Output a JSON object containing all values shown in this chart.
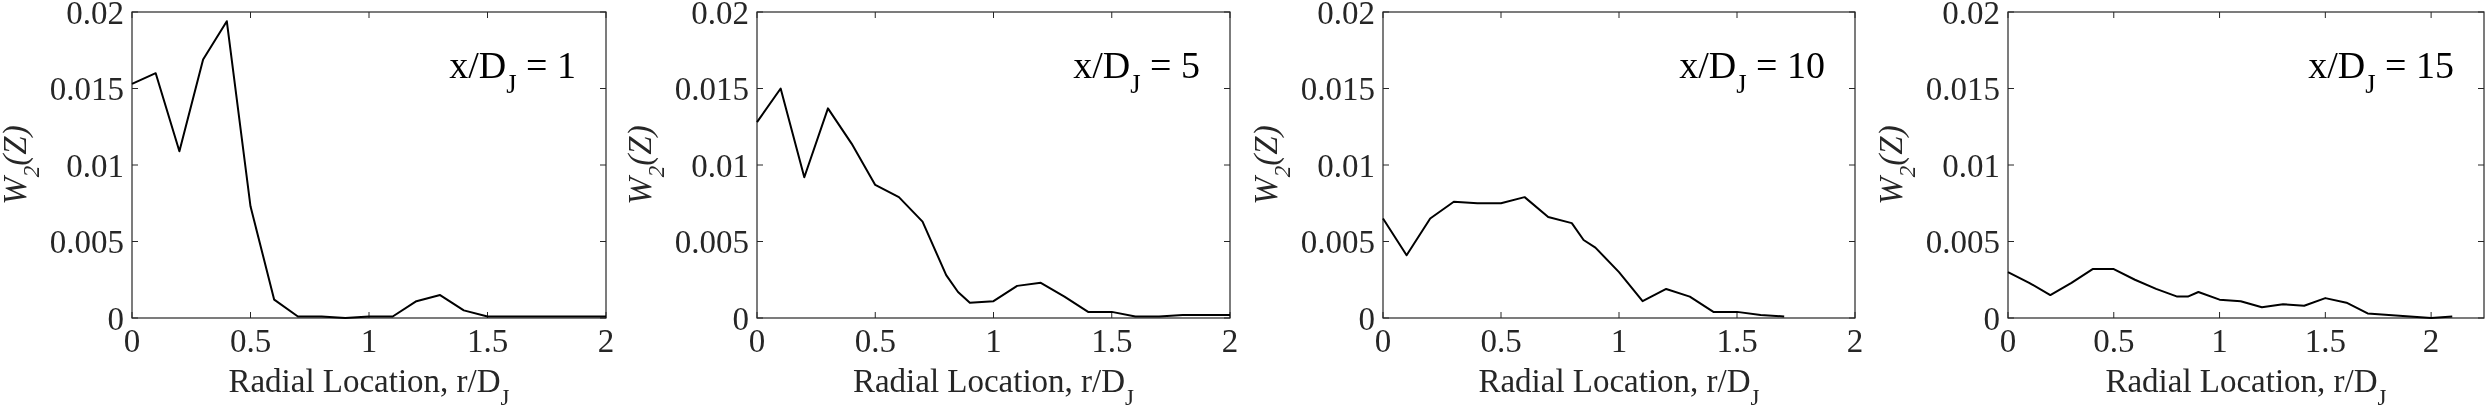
{
  "chart_data": [
    {
      "type": "line",
      "xlabel": "Radial Location, r/D$_{J}$",
      "ylabel": "W$_{2}$(Z)",
      "annotations": [
        "x/D$_{J}$ = 1"
      ],
      "xlim": [
        0,
        2
      ],
      "ylim": [
        0,
        0.02
      ],
      "xticks": [
        0,
        0.5,
        1,
        1.5,
        2
      ],
      "yticks": [
        0,
        0.005,
        0.01,
        0.015,
        0.02
      ],
      "x": [
        0,
        0.1,
        0.2,
        0.3,
        0.4,
        0.5,
        0.6,
        0.7,
        0.8,
        0.9,
        1.0,
        1.1,
        1.2,
        1.3,
        1.4,
        1.5,
        1.6,
        1.7,
        1.8,
        1.9,
        2.0
      ],
      "series": [
        {
          "color": "#000000",
          "values": [
            0.0153,
            0.016,
            0.0109,
            0.0169,
            0.0194,
            0.0073,
            0.0012,
            0.0001,
            0.0001,
            0,
            0.0001,
            0.0001,
            0.0011,
            0.0015,
            0.0005,
            0.0001,
            0.0001,
            0.0001,
            0.0001,
            0.0001,
            0.0001
          ]
        }
      ]
    },
    {
      "type": "line",
      "xlabel": "Radial Location, r/D$_{J}$",
      "ylabel": "W$_{2}$(Z)",
      "annotations": [
        "x/D$_{J}$ = 5"
      ],
      "xlim": [
        0,
        2
      ],
      "ylim": [
        0,
        0.02
      ],
      "xticks": [
        0,
        0.5,
        1,
        1.5,
        2
      ],
      "yticks": [
        0,
        0.005,
        0.01,
        0.015,
        0.02
      ],
      "x": [
        0,
        0.1,
        0.2,
        0.3,
        0.4,
        0.5,
        0.6,
        0.7,
        0.8,
        0.85,
        0.9,
        1.0,
        1.1,
        1.2,
        1.3,
        1.4,
        1.5,
        1.6,
        1.7,
        1.8,
        1.9,
        2.0
      ],
      "series": [
        {
          "color": "#000000",
          "values": [
            0.0128,
            0.015,
            0.0092,
            0.0137,
            0.0114,
            0.0087,
            0.0079,
            0.0063,
            0.0028,
            0.0017,
            0.001,
            0.0011,
            0.0021,
            0.0023,
            0.0014,
            0.0004,
            0.0004,
            0.0001,
            0.0001,
            0.0002,
            0.0002,
            0.0002
          ]
        }
      ]
    },
    {
      "type": "line",
      "xlabel": "Radial Location, r/D$_{J}$",
      "ylabel": "W$_{2}$(Z)",
      "annotations": [
        "x/D$_{J}$ = 10"
      ],
      "xlim": [
        0,
        2
      ],
      "ylim": [
        0,
        0.02
      ],
      "xticks": [
        0,
        0.5,
        1,
        1.5,
        2
      ],
      "yticks": [
        0,
        0.005,
        0.01,
        0.015,
        0.02
      ],
      "x": [
        0,
        0.1,
        0.2,
        0.3,
        0.4,
        0.5,
        0.6,
        0.7,
        0.8,
        0.85,
        0.9,
        1.0,
        1.1,
        1.2,
        1.3,
        1.4,
        1.5,
        1.6,
        1.7
      ],
      "series": [
        {
          "color": "#000000",
          "values": [
            0.0065,
            0.0041,
            0.0065,
            0.0076,
            0.0075,
            0.0075,
            0.0079,
            0.0066,
            0.0062,
            0.0051,
            0.0046,
            0.003,
            0.0011,
            0.0019,
            0.0014,
            0.0004,
            0.0004,
            0.0002,
            0.0001
          ]
        }
      ]
    },
    {
      "type": "line",
      "xlabel": "Radial Location, r/D$_{J}$",
      "ylabel": "W$_{2}$(Z)",
      "annotations": [
        "x/D$_{J}$ = 15"
      ],
      "xlim": [
        0,
        2.25
      ],
      "ylim": [
        0,
        0.02
      ],
      "xticks": [
        0,
        0.5,
        1,
        1.5,
        2
      ],
      "yticks": [
        0,
        0.005,
        0.01,
        0.015,
        0.02
      ],
      "x": [
        0,
        0.1,
        0.2,
        0.3,
        0.4,
        0.5,
        0.6,
        0.7,
        0.8,
        0.85,
        0.9,
        1.0,
        1.1,
        1.2,
        1.3,
        1.4,
        1.5,
        1.6,
        1.7,
        1.8,
        1.9,
        2.0,
        2.1
      ],
      "series": [
        {
          "color": "#000000",
          "values": [
            0.003,
            0.0023,
            0.0015,
            0.0023,
            0.0032,
            0.0032,
            0.0025,
            0.0019,
            0.0014,
            0.0014,
            0.0017,
            0.0012,
            0.0011,
            0.0007,
            0.0009,
            0.0008,
            0.0013,
            0.001,
            0.0003,
            0.0002,
            0.0001,
            0,
            0.0001
          ]
        }
      ]
    }
  ]
}
